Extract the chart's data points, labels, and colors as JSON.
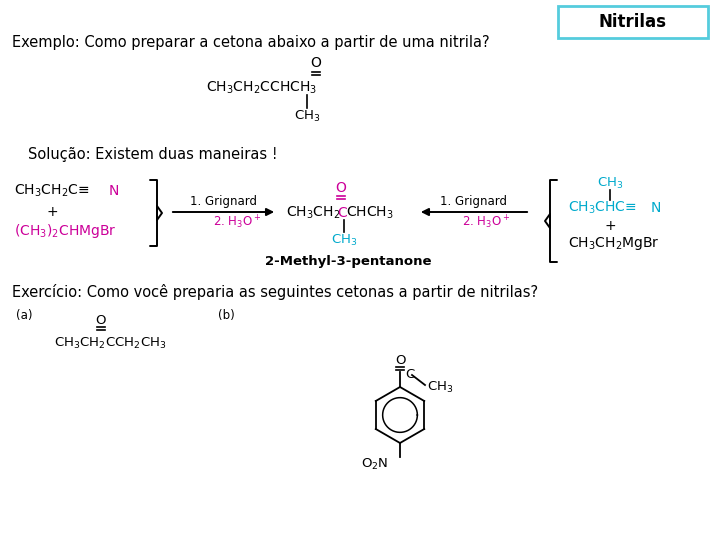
{
  "title": "Nitrilas",
  "title_box_color": "#55ccdd",
  "bg_color": "#ffffff",
  "black": "#000000",
  "magenta": "#cc0099",
  "cyan_blue": "#00aacc",
  "line_exemplo": "Exemplo: Como preparar a cetona abaixo a partir de uma nitrila?",
  "line_solucao": "Solução: Existem duas maneiras !",
  "line_exercicio": "Exercício: Como você preparia as seguintes cetonas a partir de nitrilas?",
  "label_2methyl": "2-Methyl-3-pentanone",
  "fs_main": 10.5,
  "fs_chem": 10,
  "fs_small": 8.5,
  "fs_label": 8.5
}
